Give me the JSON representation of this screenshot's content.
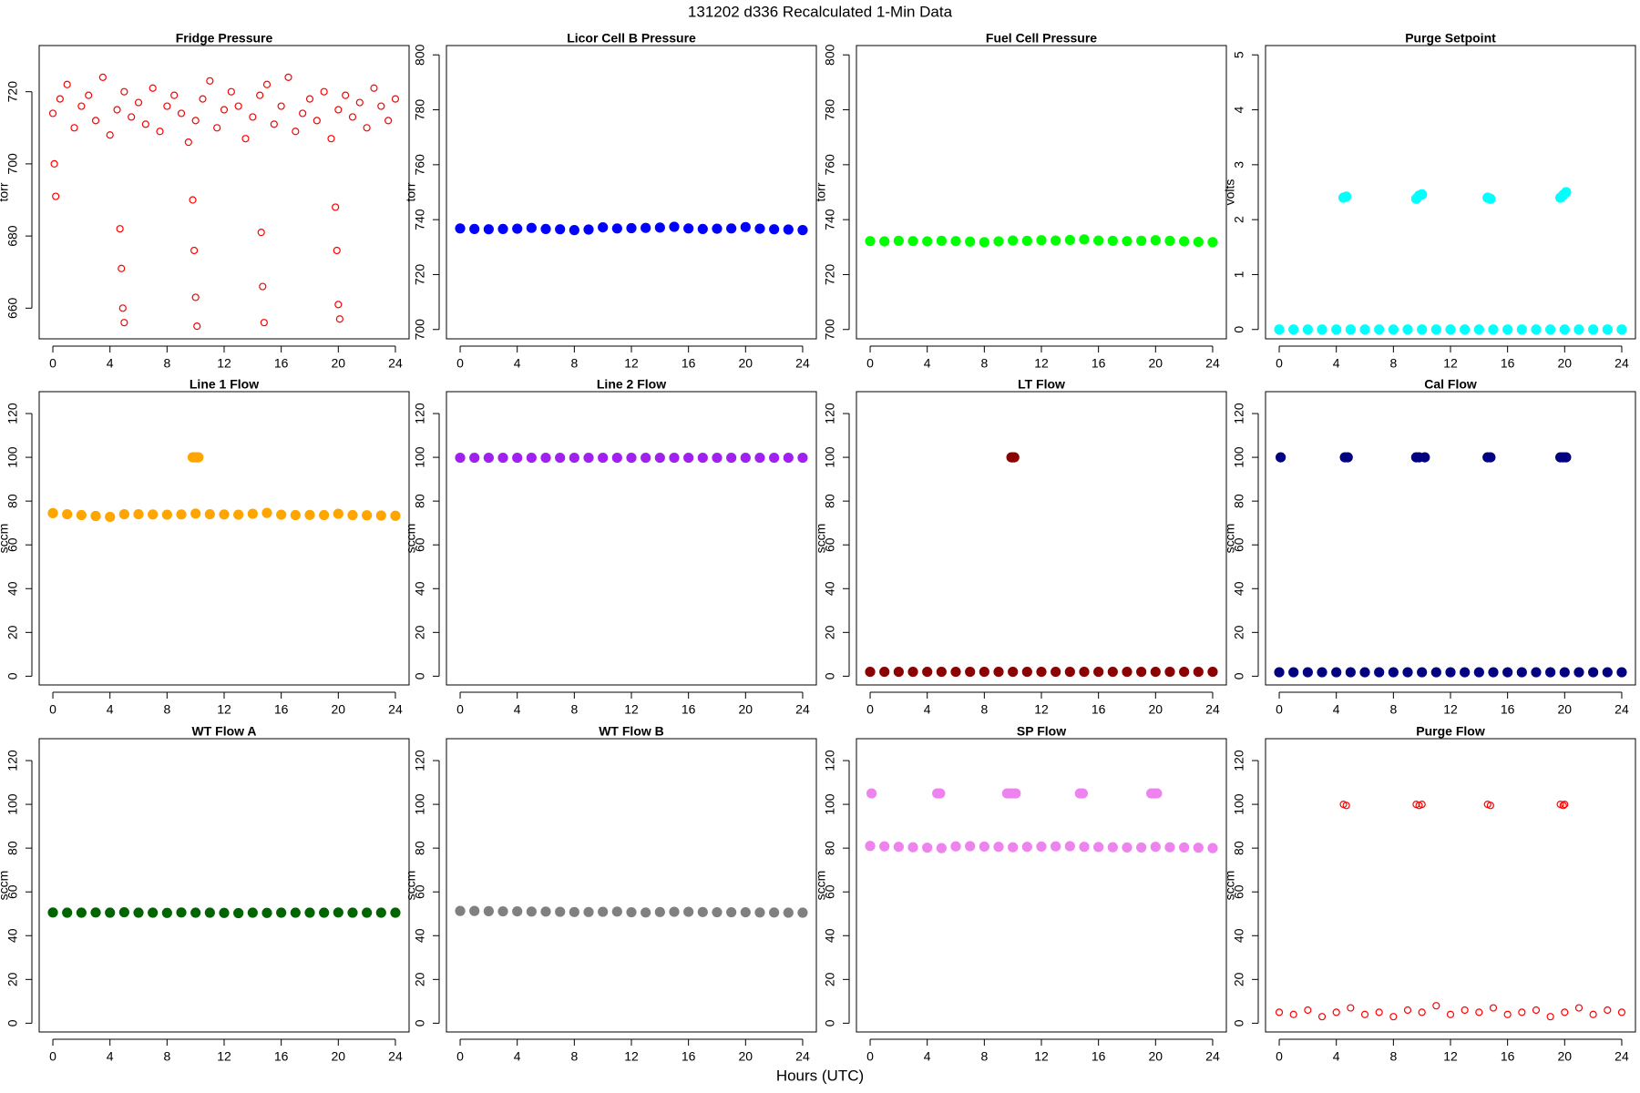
{
  "title": "131202   d336   Recalculated 1-Min Data",
  "xlabel": "Hours (UTC)",
  "chart_data": [
    {
      "type": "scatter",
      "title": "Fridge Pressure",
      "ylabel": "torr",
      "color": "#ff0000",
      "filled": false,
      "x": [
        0,
        0.5,
        1,
        1.5,
        2,
        2.5,
        3,
        3.5,
        4,
        4.5,
        5,
        5.5,
        6,
        6.5,
        7,
        7.5,
        8,
        8.5,
        9,
        9.5,
        10,
        10.5,
        11,
        11.5,
        12,
        12.5,
        13,
        13.5,
        14,
        14.5,
        15,
        15.5,
        16,
        16.5,
        17,
        17.5,
        18,
        18.5,
        19,
        19.5,
        20,
        20.5,
        21,
        21.5,
        22,
        22.5,
        23,
        23.5,
        24,
        0.1,
        0.2,
        4.7,
        4.8,
        4.9,
        5.0,
        9.8,
        9.9,
        10.0,
        10.1,
        14.6,
        14.7,
        14.8,
        19.8,
        19.9,
        20.0,
        20.1
      ],
      "values": [
        714,
        718,
        722,
        710,
        716,
        719,
        712,
        724,
        708,
        715,
        720,
        713,
        717,
        711,
        721,
        709,
        716,
        719,
        714,
        706,
        712,
        718,
        723,
        710,
        715,
        720,
        716,
        707,
        713,
        719,
        722,
        711,
        716,
        724,
        709,
        714,
        718,
        712,
        720,
        707,
        715,
        719,
        713,
        717,
        710,
        721,
        716,
        712,
        718,
        700,
        691,
        682,
        671,
        660,
        656,
        690,
        676,
        663,
        655,
        681,
        666,
        656,
        688,
        676,
        661,
        657
      ],
      "xlim": [
        -0.96,
        24.96
      ],
      "xticks": [
        0,
        4,
        8,
        12,
        16,
        20,
        24
      ],
      "ylim": [
        651.5,
        732.8
      ],
      "yticks": [
        660,
        680,
        700,
        720
      ]
    },
    {
      "type": "scatter",
      "title": "Licor Cell B Pressure",
      "ylabel": "torr",
      "color": "#0000ff",
      "filled": true,
      "x": [
        0,
        1,
        2,
        3,
        4,
        5,
        6,
        7,
        8,
        9,
        10,
        11,
        12,
        13,
        14,
        15,
        16,
        17,
        18,
        19,
        20,
        21,
        22,
        23,
        24
      ],
      "values": [
        736.8,
        736.6,
        736.5,
        736.6,
        736.7,
        737,
        736.6,
        736.5,
        736.2,
        736.4,
        737.2,
        736.8,
        736.9,
        737,
        737.1,
        737.4,
        736.8,
        736.6,
        736.7,
        736.8,
        737.3,
        736.7,
        736.5,
        736.4,
        736.2
      ],
      "xlim": [
        -0.96,
        24.96
      ],
      "xticks": [
        0,
        4,
        8,
        12,
        16,
        20,
        24
      ],
      "ylim": [
        696.6,
        803.4
      ],
      "yticks": [
        700,
        720,
        740,
        760,
        780,
        800
      ]
    },
    {
      "type": "scatter",
      "title": "Fuel Cell Pressure",
      "ylabel": "torr",
      "color": "#00ff00",
      "filled": true,
      "x": [
        0,
        1,
        2,
        3,
        4,
        5,
        6,
        7,
        8,
        9,
        10,
        11,
        12,
        13,
        14,
        15,
        16,
        17,
        18,
        19,
        20,
        21,
        22,
        23,
        24
      ],
      "values": [
        732.2,
        732.1,
        732.3,
        732.2,
        732.1,
        732.3,
        732.2,
        732.0,
        731.8,
        732.1,
        732.4,
        732.3,
        732.5,
        732.4,
        732.6,
        732.8,
        732.4,
        732.3,
        732.2,
        732.3,
        732.5,
        732.3,
        732.1,
        731.9,
        731.8
      ],
      "xlim": [
        -0.96,
        24.96
      ],
      "xticks": [
        0,
        4,
        8,
        12,
        16,
        20,
        24
      ],
      "ylim": [
        696.6,
        803.4
      ],
      "yticks": [
        700,
        720,
        740,
        760,
        780,
        800
      ]
    },
    {
      "type": "scatter",
      "title": "Purge Setpoint",
      "ylabel": "volts",
      "color": "#00ffff",
      "filled": true,
      "x": [
        0,
        1,
        2,
        3,
        4,
        5,
        6,
        7,
        8,
        9,
        10,
        11,
        12,
        13,
        14,
        15,
        16,
        17,
        18,
        19,
        20,
        21,
        22,
        23,
        24,
        4.5,
        4.7,
        9.6,
        9.8,
        10.0,
        14.6,
        14.8,
        19.7,
        19.9,
        20.1
      ],
      "values": [
        0,
        0,
        0,
        0,
        0,
        0,
        0,
        0,
        0,
        0,
        0,
        0,
        0,
        0,
        0,
        0,
        0,
        0,
        0,
        0,
        0,
        0,
        0,
        0,
        0,
        2.4,
        2.42,
        2.38,
        2.44,
        2.46,
        2.4,
        2.38,
        2.4,
        2.45,
        2.5
      ],
      "xlim": [
        -0.96,
        24.96
      ],
      "xticks": [
        0,
        4,
        8,
        12,
        16,
        20,
        24
      ],
      "ylim": [
        -0.17,
        5.17
      ],
      "yticks": [
        0,
        1,
        2,
        3,
        4,
        5
      ]
    },
    {
      "type": "scatter",
      "title": "Line 1 Flow",
      "ylabel": "sccm",
      "color": "#ffa500",
      "filled": true,
      "x": [
        0,
        1,
        2,
        3,
        4,
        5,
        6,
        7,
        8,
        9,
        10,
        11,
        12,
        13,
        14,
        15,
        16,
        17,
        18,
        19,
        20,
        21,
        22,
        23,
        24,
        9.8,
        9.9,
        10,
        10.1,
        10.2
      ],
      "values": [
        74.5,
        74,
        73.6,
        73.2,
        72.8,
        74,
        74,
        73.9,
        73.8,
        73.9,
        74.3,
        74,
        73.9,
        73.8,
        74.2,
        74.6,
        73.8,
        73.6,
        73.7,
        73.6,
        74.2,
        73.6,
        73.5,
        73.4,
        73.3,
        100,
        100,
        100,
        100,
        100
      ],
      "xlim": [
        -0.96,
        24.96
      ],
      "xticks": [
        0,
        4,
        8,
        12,
        16,
        20,
        24
      ],
      "ylim": [
        -4,
        130
      ],
      "yticks": [
        0,
        20,
        40,
        60,
        80,
        100,
        120
      ]
    },
    {
      "type": "scatter",
      "title": "Line 2 Flow",
      "ylabel": "sccm",
      "color": "#a020f0",
      "filled": true,
      "x": [
        0,
        1,
        2,
        3,
        4,
        5,
        6,
        7,
        8,
        9,
        10,
        11,
        12,
        13,
        14,
        15,
        16,
        17,
        18,
        19,
        20,
        21,
        22,
        23,
        24
      ],
      "values": [
        99.8,
        99.8,
        99.8,
        99.8,
        99.8,
        99.8,
        99.8,
        99.8,
        99.8,
        99.8,
        99.8,
        99.8,
        99.8,
        99.8,
        99.8,
        99.8,
        99.8,
        99.8,
        99.8,
        99.8,
        99.8,
        99.8,
        99.8,
        99.8,
        99.8
      ],
      "xlim": [
        -0.96,
        24.96
      ],
      "xticks": [
        0,
        4,
        8,
        12,
        16,
        20,
        24
      ],
      "ylim": [
        -4,
        130
      ],
      "yticks": [
        0,
        20,
        40,
        60,
        80,
        100,
        120
      ]
    },
    {
      "type": "scatter",
      "title": "LT Flow",
      "ylabel": "sccm",
      "color": "#8b0000",
      "filled": true,
      "x": [
        0,
        1,
        2,
        3,
        4,
        5,
        6,
        7,
        8,
        9,
        10,
        11,
        12,
        13,
        14,
        15,
        16,
        17,
        18,
        19,
        20,
        21,
        22,
        23,
        24,
        9.9,
        10,
        10.1
      ],
      "values": [
        2,
        2,
        2,
        2,
        2,
        2,
        2,
        2,
        2,
        2,
        2,
        2,
        2,
        2,
        2,
        2,
        2,
        2,
        2,
        2,
        2,
        2,
        2,
        2,
        2,
        100,
        100,
        100
      ],
      "xlim": [
        -0.96,
        24.96
      ],
      "xticks": [
        0,
        4,
        8,
        12,
        16,
        20,
        24
      ],
      "ylim": [
        -4,
        130
      ],
      "yticks": [
        0,
        20,
        40,
        60,
        80,
        100,
        120
      ]
    },
    {
      "type": "scatter",
      "title": "Cal Flow",
      "ylabel": "sccm",
      "color": "#000080",
      "filled": true,
      "x": [
        0,
        1,
        2,
        3,
        4,
        5,
        6,
        7,
        8,
        9,
        10,
        11,
        12,
        13,
        14,
        15,
        16,
        17,
        18,
        19,
        20,
        21,
        22,
        23,
        24,
        0.1,
        4.6,
        4.8,
        9.6,
        9.8,
        10.2,
        14.6,
        14.8,
        19.7,
        19.9,
        20.1
      ],
      "values": [
        1.8,
        1.8,
        1.8,
        1.8,
        1.8,
        1.8,
        1.8,
        1.8,
        1.8,
        1.8,
        1.8,
        1.8,
        1.8,
        1.8,
        1.8,
        1.8,
        1.8,
        1.8,
        1.8,
        1.8,
        1.8,
        1.8,
        1.8,
        1.8,
        1.8,
        100,
        100,
        100,
        100,
        100,
        100,
        100,
        100,
        100,
        100,
        100
      ],
      "xlim": [
        -0.96,
        24.96
      ],
      "xticks": [
        0,
        4,
        8,
        12,
        16,
        20,
        24
      ],
      "ylim": [
        -4,
        130
      ],
      "yticks": [
        0,
        20,
        40,
        60,
        80,
        100,
        120
      ]
    },
    {
      "type": "scatter",
      "title": "WT Flow A",
      "ylabel": "sccm",
      "color": "#006400",
      "filled": true,
      "x": [
        0,
        1,
        2,
        3,
        4,
        5,
        6,
        7,
        8,
        9,
        10,
        11,
        12,
        13,
        14,
        15,
        16,
        17,
        18,
        19,
        20,
        21,
        22,
        23,
        24
      ],
      "values": [
        50.6,
        50.5,
        50.5,
        50.6,
        50.5,
        50.7,
        50.5,
        50.5,
        50.4,
        50.6,
        50.5,
        50.5,
        50.4,
        50.3,
        50.5,
        50.4,
        50.5,
        50.5,
        50.5,
        50.5,
        50.6,
        50.5,
        50.5,
        50.5,
        50.5
      ],
      "xlim": [
        -0.96,
        24.96
      ],
      "xticks": [
        0,
        4,
        8,
        12,
        16,
        20,
        24
      ],
      "ylim": [
        -4,
        130
      ],
      "yticks": [
        0,
        20,
        40,
        60,
        80,
        100,
        120
      ]
    },
    {
      "type": "scatter",
      "title": "WT Flow B",
      "ylabel": "sccm",
      "color": "#808080",
      "filled": true,
      "x": [
        0,
        1,
        2,
        3,
        4,
        5,
        6,
        7,
        8,
        9,
        10,
        11,
        12,
        13,
        14,
        15,
        16,
        17,
        18,
        19,
        20,
        21,
        22,
        23,
        24
      ],
      "values": [
        51.3,
        51.3,
        51.2,
        51.1,
        51.1,
        51,
        51,
        50.9,
        50.8,
        50.8,
        50.9,
        51,
        50.7,
        50.6,
        50.8,
        50.9,
        50.9,
        50.8,
        50.7,
        50.7,
        50.7,
        50.6,
        50.6,
        50.5,
        50.5
      ],
      "xlim": [
        -0.96,
        24.96
      ],
      "xticks": [
        0,
        4,
        8,
        12,
        16,
        20,
        24
      ],
      "ylim": [
        -4,
        130
      ],
      "yticks": [
        0,
        20,
        40,
        60,
        80,
        100,
        120
      ]
    },
    {
      "type": "scatter",
      "title": "SP Flow",
      "ylabel": "sccm",
      "color": "#ee82ee",
      "filled": true,
      "x": [
        0,
        1,
        2,
        3,
        4,
        5,
        6,
        7,
        8,
        9,
        10,
        11,
        12,
        13,
        14,
        15,
        16,
        17,
        18,
        19,
        20,
        21,
        22,
        23,
        24,
        0.1,
        4.7,
        4.9,
        9.6,
        9.8,
        10.0,
        10.2,
        14.7,
        14.9,
        19.7,
        19.9,
        20.1
      ],
      "values": [
        81,
        80.8,
        80.6,
        80.4,
        80.2,
        80,
        80.8,
        80.9,
        80.7,
        80.6,
        80.4,
        80.6,
        80.7,
        80.8,
        80.9,
        80.6,
        80.5,
        80.4,
        80.3,
        80.3,
        80.6,
        80.4,
        80.3,
        80.2,
        80,
        105,
        105,
        105,
        105,
        105,
        105,
        105,
        105,
        105,
        105,
        105,
        105
      ],
      "xlim": [
        -0.96,
        24.96
      ],
      "xticks": [
        0,
        4,
        8,
        12,
        16,
        20,
        24
      ],
      "ylim": [
        -4,
        130
      ],
      "yticks": [
        0,
        20,
        40,
        60,
        80,
        100,
        120
      ]
    },
    {
      "type": "scatter",
      "title": "Purge Flow",
      "ylabel": "sccm",
      "color": "#ff0000",
      "filled": false,
      "x": [
        0,
        1,
        2,
        3,
        4,
        5,
        6,
        7,
        8,
        9,
        10,
        11,
        12,
        13,
        14,
        15,
        16,
        17,
        18,
        19,
        20,
        21,
        22,
        23,
        24,
        4.5,
        4.7,
        9.6,
        9.8,
        10.0,
        14.6,
        14.8,
        19.7,
        19.9,
        20.0
      ],
      "values": [
        5,
        4,
        6,
        3,
        5,
        7,
        4,
        5,
        3,
        6,
        5,
        8,
        4,
        6,
        5,
        7,
        4,
        5,
        6,
        3,
        5,
        7,
        4,
        6,
        5,
        100,
        99.5,
        100,
        99.5,
        100,
        100,
        99.5,
        100,
        99.5,
        100
      ],
      "xlim": [
        -0.96,
        24.96
      ],
      "xticks": [
        0,
        4,
        8,
        12,
        16,
        20,
        24
      ],
      "ylim": [
        -4,
        130
      ],
      "yticks": [
        0,
        20,
        40,
        60,
        80,
        100,
        120
      ]
    }
  ]
}
